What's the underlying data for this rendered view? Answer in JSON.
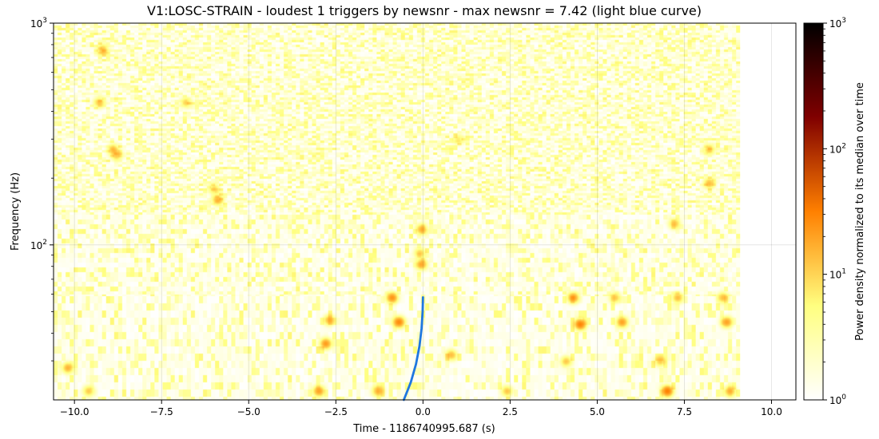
{
  "chart_data": {
    "type": "heatmap",
    "title": "V1:LOSC-STRAIN - loudest 1 triggers by newsnr - max newsnr = 7.42 (light blue curve)",
    "xlabel": "Time - 1186740995.687 (s)",
    "ylabel": "Frequency (Hz)",
    "xlim": [
      -10.6,
      10.7
    ],
    "ylim": [
      20,
      1000
    ],
    "yscale": "log",
    "grid": true,
    "x_ticks": [
      -10.0,
      -7.5,
      -5.0,
      -2.5,
      0.0,
      2.5,
      5.0,
      7.5,
      10.0
    ],
    "x_tick_labels": [
      "−10.0",
      "−7.5",
      "−5.0",
      "−2.5",
      "0.0",
      "2.5",
      "5.0",
      "7.5",
      "10.0"
    ],
    "y_ticks": [
      100,
      1000
    ],
    "y_tick_labels": [
      {
        "base": "10",
        "exp": "2"
      },
      {
        "base": "10",
        "exp": "3"
      }
    ],
    "data_extent": {
      "x": [
        -10.6,
        9.1
      ],
      "y": [
        20,
        1000
      ]
    },
    "colorbar": {
      "label": "Power density normalized to its median over time",
      "scale": "log",
      "range": [
        1,
        1000
      ],
      "cmap": "afmhot_r",
      "ticks": [
        {
          "value": 1,
          "base": "10",
          "exp": "0"
        },
        {
          "value": 10,
          "base": "10",
          "exp": "1"
        },
        {
          "value": 100,
          "base": "10",
          "exp": "2"
        },
        {
          "value": 1000,
          "base": "10",
          "exp": "3"
        }
      ]
    },
    "trigger_curve": {
      "color": "#1f77e0",
      "points": [
        {
          "x": -0.55,
          "y": 20
        },
        {
          "x": -0.35,
          "y": 24
        },
        {
          "x": -0.2,
          "y": 29
        },
        {
          "x": -0.1,
          "y": 35
        },
        {
          "x": -0.04,
          "y": 42
        },
        {
          "x": -0.01,
          "y": 50
        },
        {
          "x": 0.0,
          "y": 58
        }
      ]
    },
    "hot_spots": [
      {
        "x": -9.2,
        "y": 760,
        "v": 12
      },
      {
        "x": -9.3,
        "y": 440,
        "v": 10
      },
      {
        "x": -8.9,
        "y": 270,
        "v": 12
      },
      {
        "x": -8.8,
        "y": 255,
        "v": 10
      },
      {
        "x": -5.9,
        "y": 160,
        "v": 14
      },
      {
        "x": -6.0,
        "y": 180,
        "v": 8
      },
      {
        "x": -2.8,
        "y": 36,
        "v": 20
      },
      {
        "x": -2.7,
        "y": 46,
        "v": 12
      },
      {
        "x": -3.0,
        "y": 22,
        "v": 18
      },
      {
        "x": -0.9,
        "y": 58,
        "v": 22
      },
      {
        "x": -0.7,
        "y": 45,
        "v": 26
      },
      {
        "x": -1.3,
        "y": 22,
        "v": 14
      },
      {
        "x": -0.05,
        "y": 82,
        "v": 16
      },
      {
        "x": -0.05,
        "y": 118,
        "v": 14
      },
      {
        "x": -0.1,
        "y": 92,
        "v": 10
      },
      {
        "x": 0.8,
        "y": 32,
        "v": 12
      },
      {
        "x": 4.3,
        "y": 58,
        "v": 20
      },
      {
        "x": 4.5,
        "y": 44,
        "v": 28
      },
      {
        "x": 4.1,
        "y": 30,
        "v": 10
      },
      {
        "x": 5.7,
        "y": 45,
        "v": 18
      },
      {
        "x": 5.5,
        "y": 58,
        "v": 10
      },
      {
        "x": 7.0,
        "y": 22,
        "v": 30
      },
      {
        "x": 7.3,
        "y": 58,
        "v": 12
      },
      {
        "x": 6.8,
        "y": 30,
        "v": 10
      },
      {
        "x": 8.7,
        "y": 45,
        "v": 18
      },
      {
        "x": 8.6,
        "y": 58,
        "v": 12
      },
      {
        "x": 8.8,
        "y": 22,
        "v": 14
      },
      {
        "x": 8.2,
        "y": 190,
        "v": 12
      },
      {
        "x": 8.2,
        "y": 270,
        "v": 10
      },
      {
        "x": 7.2,
        "y": 125,
        "v": 10
      },
      {
        "x": -10.2,
        "y": 28,
        "v": 14
      },
      {
        "x": -9.6,
        "y": 22,
        "v": 10
      },
      {
        "x": -6.8,
        "y": 440,
        "v": 8
      },
      {
        "x": 2.4,
        "y": 22,
        "v": 10
      },
      {
        "x": 1.0,
        "y": 300,
        "v": 6
      }
    ]
  }
}
